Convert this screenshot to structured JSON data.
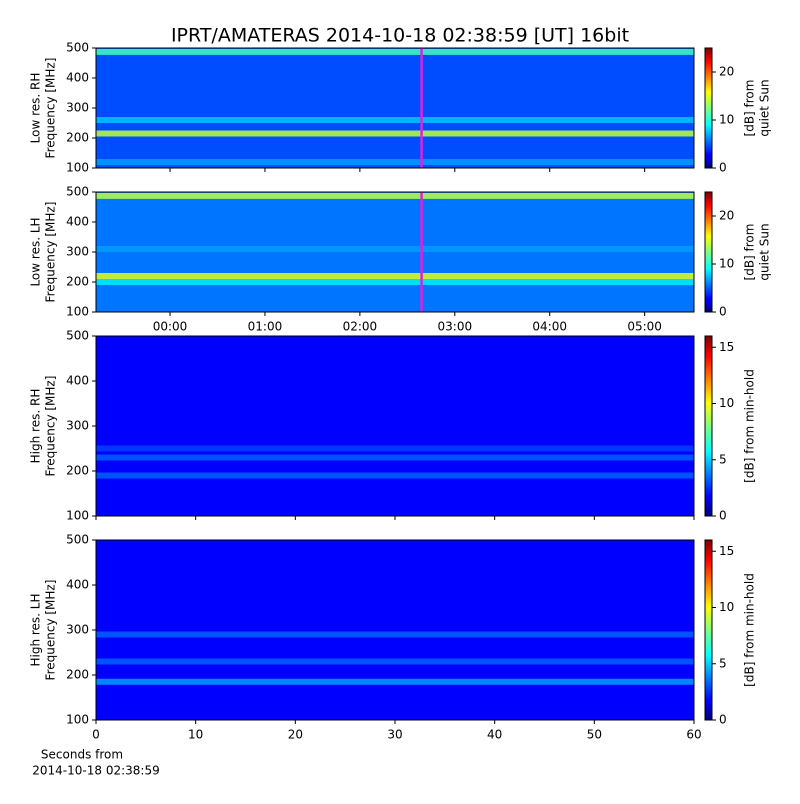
{
  "title": "IPRT/AMATERAS 2014-10-18 02:38:59 [UT]   16bit",
  "chart_data": [
    {
      "type": "heatmap",
      "ylabel": [
        "Low res. RH",
        "Frequency [MHz]"
      ],
      "ylim": [
        100,
        500
      ],
      "yticks": [
        100,
        200,
        300,
        400,
        500
      ],
      "xlim": [
        -0.78,
        5.52
      ],
      "sharex": 1,
      "clim": [
        0,
        25
      ],
      "cticks": [
        0,
        10,
        20
      ],
      "colorbar_label": [
        "[dB] from",
        "quiet Sun"
      ],
      "base_db": 5,
      "bands": [
        {
          "freq": 215,
          "db": 14
        },
        {
          "freq": 487,
          "db": 11
        },
        {
          "freq": 120,
          "db": 7
        },
        {
          "freq": 260,
          "db": 8
        }
      ],
      "marker": {
        "x": 2.65,
        "color": "#dd22dd"
      }
    },
    {
      "type": "heatmap",
      "ylabel": [
        "Low res. LH",
        "Frequency [MHz]"
      ],
      "ylim": [
        100,
        500
      ],
      "yticks": [
        100,
        200,
        300,
        400,
        500
      ],
      "xlim": [
        -0.78,
        5.52
      ],
      "xticks": [
        {
          "value": 0,
          "label": "00:00"
        },
        {
          "value": 1,
          "label": "01:00"
        },
        {
          "value": 2,
          "label": "02:00"
        },
        {
          "value": 3,
          "label": "03:00"
        },
        {
          "value": 4,
          "label": "04:00"
        },
        {
          "value": 5,
          "label": "05:00"
        }
      ],
      "clim": [
        0,
        25
      ],
      "cticks": [
        0,
        10,
        20
      ],
      "colorbar_label": [
        "[dB] from",
        "quiet Sun"
      ],
      "base_db": 6,
      "bands": [
        {
          "freq": 200,
          "db": 9
        },
        {
          "freq": 220,
          "db": 15
        },
        {
          "freq": 487,
          "db": 14
        },
        {
          "freq": 310,
          "db": 7
        }
      ],
      "marker": {
        "x": 2.65,
        "color": "#dd22dd"
      }
    },
    {
      "type": "heatmap",
      "ylabel": [
        "High res. RH",
        "Frequency [MHz]"
      ],
      "ylim": [
        100,
        500
      ],
      "yticks": [
        100,
        200,
        300,
        400,
        500
      ],
      "xlim": [
        0,
        60
      ],
      "sharex": 3,
      "clim": [
        0,
        16
      ],
      "cticks": [
        0,
        5,
        10,
        15
      ],
      "colorbar_label": [
        "[dB] from min-hold"
      ],
      "base_db": 2,
      "bands": [
        {
          "freq": 190,
          "db": 3.5
        },
        {
          "freq": 230,
          "db": 3.5
        },
        {
          "freq": 250,
          "db": 3
        }
      ]
    },
    {
      "type": "heatmap",
      "ylabel": [
        "High res. LH",
        "Frequency [MHz]"
      ],
      "ylim": [
        100,
        500
      ],
      "yticks": [
        100,
        200,
        300,
        400,
        500
      ],
      "xlim": [
        0,
        60
      ],
      "xticks": [
        0,
        10,
        20,
        30,
        40,
        50,
        60
      ],
      "xlabel": [
        "Seconds from",
        "2014-10-18 02:38:59"
      ],
      "clim": [
        0,
        16
      ],
      "cticks": [
        0,
        5,
        10,
        15
      ],
      "colorbar_label": [
        "[dB] from min-hold"
      ],
      "base_db": 2,
      "bands": [
        {
          "freq": 185,
          "db": 4.5
        },
        {
          "freq": 230,
          "db": 3.5
        },
        {
          "freq": 290,
          "db": 3.5
        }
      ]
    }
  ]
}
